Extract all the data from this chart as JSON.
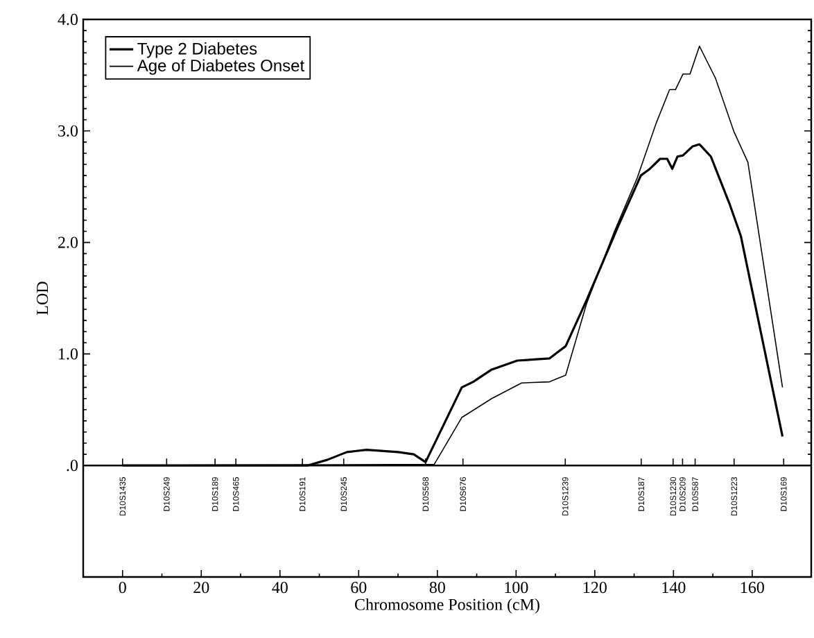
{
  "chart_data": {
    "type": "line",
    "xlabel": "Chromosome Position (cM)",
    "ylabel": "LOD",
    "xlim": [
      -10,
      175
    ],
    "ylim": [
      -1,
      4
    ],
    "xticks": [
      0,
      20,
      40,
      60,
      80,
      100,
      120,
      140,
      160
    ],
    "yticks": [
      {
        "value": 0,
        "label": ".0"
      },
      {
        "value": 1,
        "label": "1.0"
      },
      {
        "value": 2,
        "label": "2.0"
      },
      {
        "value": 3,
        "label": "3.0"
      },
      {
        "value": 4,
        "label": "4.0"
      }
    ],
    "legend": "top left",
    "grid": false,
    "marker": "none",
    "ref_lines": [
      {
        "axis": "y",
        "value": 0,
        "color": "#000000"
      }
    ],
    "series": [
      {
        "name": "Type 2 Diabetes",
        "color": "#000000",
        "line_style": "solid",
        "x": [
          0,
          47,
          52,
          57,
          62,
          70,
          74,
          77,
          86.2,
          89.1,
          93.8,
          100.3,
          108.5,
          112.6,
          117.9,
          126,
          131.7,
          134,
          136.6,
          138.4,
          139.7,
          141,
          142.4,
          144.8,
          146.6,
          149.5,
          154.2,
          157.1,
          167.7
        ],
        "values": [
          0,
          0,
          0.05,
          0.12,
          0.14,
          0.12,
          0.1,
          0.03,
          0.7,
          0.75,
          0.86,
          0.94,
          0.96,
          1.07,
          1.48,
          2.15,
          2.6,
          2.66,
          2.75,
          2.75,
          2.66,
          2.77,
          2.78,
          2.86,
          2.88,
          2.77,
          2.35,
          2.06,
          0.26
        ]
      },
      {
        "name": "Age of Diabetes Onset",
        "color": "#000000",
        "line_style": "solid",
        "x": [
          0,
          79.2,
          86.2,
          93.8,
          101.4,
          108.5,
          112.6,
          117.9,
          125,
          130.8,
          135.5,
          139,
          140.5,
          142.4,
          144.2,
          146.6,
          150.7,
          155.4,
          158.9,
          167.7
        ],
        "values": [
          0,
          0.01,
          0.43,
          0.6,
          0.74,
          0.75,
          0.81,
          1.45,
          2.1,
          2.58,
          3.06,
          3.37,
          3.37,
          3.51,
          3.51,
          3.76,
          3.47,
          2.99,
          2.72,
          0.7
        ]
      }
    ],
    "annotations": [
      {
        "text": "D10S1435",
        "x": 0,
        "y": 0
      },
      {
        "text": "D10S249",
        "x": 11.2,
        "y": 0
      },
      {
        "text": "D10S189",
        "x": 23.5,
        "y": 0
      },
      {
        "text": "D10S465",
        "x": 28.8,
        "y": 0
      },
      {
        "text": "D10S191",
        "x": 45.7,
        "y": 0
      },
      {
        "text": "D10S245",
        "x": 56.2,
        "y": 0
      },
      {
        "text": "D10S568",
        "x": 77,
        "y": 0
      },
      {
        "text": "D10S676",
        "x": 86.5,
        "y": 0
      },
      {
        "text": "D10S1239",
        "x": 112.5,
        "y": 0
      },
      {
        "text": "D10S187",
        "x": 131.8,
        "y": 0
      },
      {
        "text": "D10S1230",
        "x": 139.9,
        "y": 0
      },
      {
        "text": "D10S209",
        "x": 142.3,
        "y": 0
      },
      {
        "text": "D10S587",
        "x": 145.5,
        "y": 0
      },
      {
        "text": "D10S1223",
        "x": 155.4,
        "y": 0
      },
      {
        "text": "D10S169",
        "x": 168,
        "y": 0
      }
    ]
  }
}
